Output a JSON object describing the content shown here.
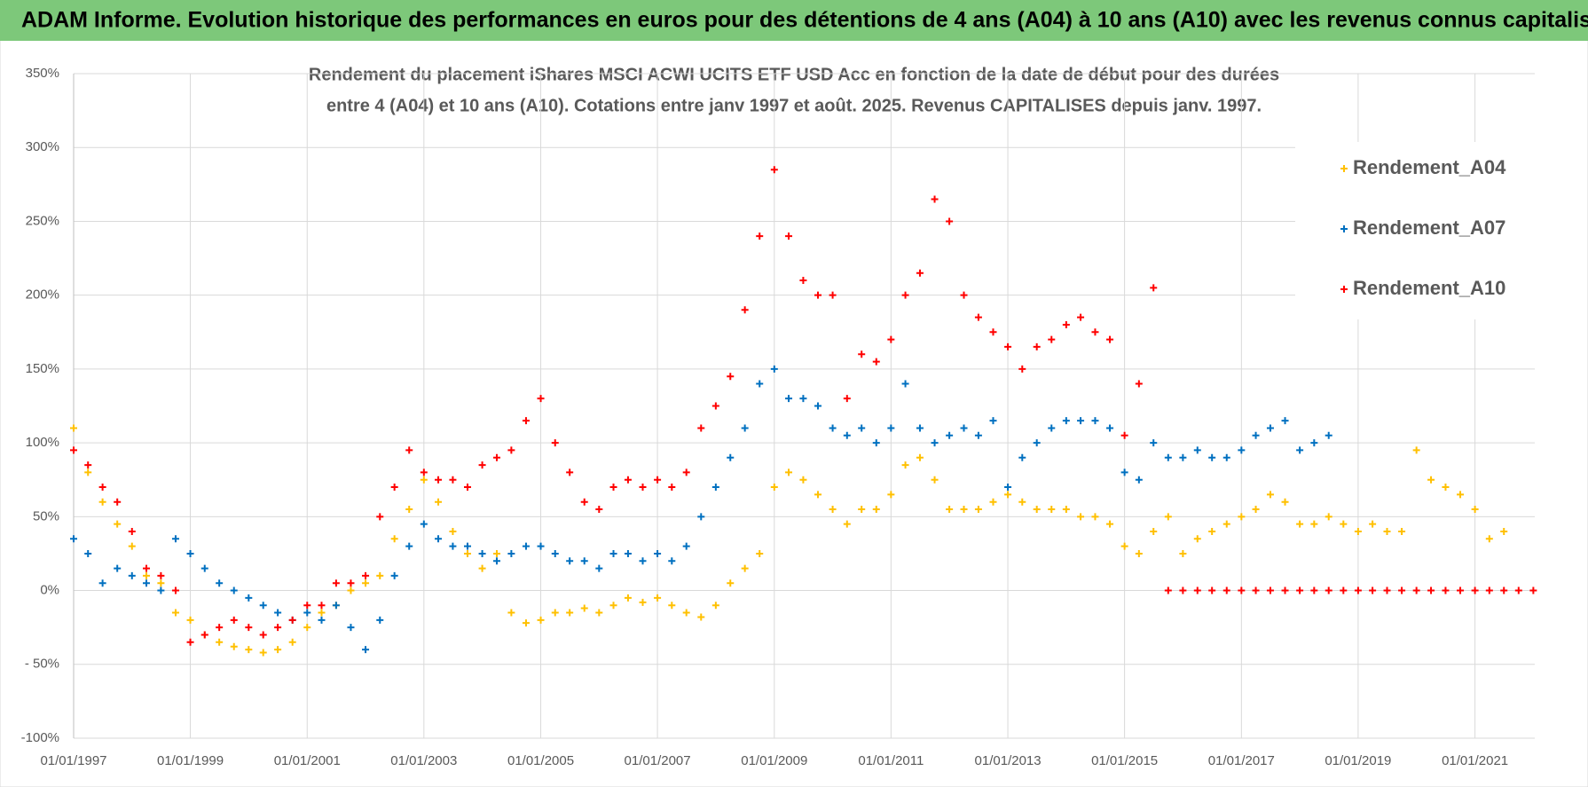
{
  "chart_data": {
    "type": "scatter",
    "title": "ADAM Informe. Evolution historique des performances en euros pour des détentions de 4 ans (A04) à 10 ans (A10) avec les revenus connus capitalisés",
    "subtitle": [
      "Rendement du placement iShares MSCI ACWI UCITS ETF USD Acc en fonction de la date de début pour des durées",
      "entre 4 (A04) et 10 ans (A10).  Cotations entre janv 1997 et août. 2025. Revenus CAPITALISES depuis janv. 1997."
    ],
    "xlim": [
      "1997-01-01",
      "2022-01-10"
    ],
    "xticks": [
      {
        "value": "1997-01-01",
        "label": "01/01/1997"
      },
      {
        "value": "1999-01-01",
        "label": "01/01/1999"
      },
      {
        "value": "2001-01-01",
        "label": "01/01/2001"
      },
      {
        "value": "2003-01-01",
        "label": "01/01/2003"
      },
      {
        "value": "2005-01-01",
        "label": "01/01/2005"
      },
      {
        "value": "2007-01-01",
        "label": "01/01/2007"
      },
      {
        "value": "2009-01-01",
        "label": "01/01/2009"
      },
      {
        "value": "2011-01-01",
        "label": "01/01/2011"
      },
      {
        "value": "2013-01-01",
        "label": "01/01/2013"
      },
      {
        "value": "2015-01-01",
        "label": "01/01/2015"
      },
      {
        "value": "2017-01-01",
        "label": "01/01/2017"
      },
      {
        "value": "2019-01-01",
        "label": "01/01/2019"
      },
      {
        "value": "2021-01-01",
        "label": "01/01/2021"
      }
    ],
    "ylim": [
      -100,
      350
    ],
    "yticks": [
      {
        "value": -100,
        "label": "-100%"
      },
      {
        "value": -50,
        "label": "- 50%"
      },
      {
        "value": 0,
        "label": "0%"
      },
      {
        "value": 50,
        "label": "50%"
      },
      {
        "value": 100,
        "label": "100%"
      },
      {
        "value": 150,
        "label": "150%"
      },
      {
        "value": 200,
        "label": "200%"
      },
      {
        "value": 250,
        "label": "250%"
      },
      {
        "value": 300,
        "label": "300%"
      },
      {
        "value": 350,
        "label": "350%"
      }
    ],
    "grid": true,
    "legend": "right",
    "series": [
      {
        "name": "Rendement_A04",
        "color": "#ffc000",
        "x": [
          "1997-01-01",
          "1997-04-01",
          "1997-07-01",
          "1997-10-01",
          "1998-01-01",
          "1998-04-01",
          "1998-07-01",
          "1998-10-01",
          "1999-01-01",
          "1999-04-01",
          "1999-07-01",
          "1999-10-01",
          "2000-01-01",
          "2000-04-01",
          "2000-07-01",
          "2000-10-01",
          "2001-01-01",
          "2001-04-01",
          "2001-07-01",
          "2001-10-01",
          "2002-01-01",
          "2002-04-01",
          "2002-07-01",
          "2002-10-01",
          "2003-01-01",
          "2003-04-01",
          "2003-07-01",
          "2003-10-01",
          "2004-01-01",
          "2004-04-01",
          "2004-07-01",
          "2004-10-01",
          "2005-01-01",
          "2005-04-01",
          "2005-07-01",
          "2005-10-01",
          "2006-01-01",
          "2006-04-01",
          "2006-07-01",
          "2006-10-01",
          "2007-01-01",
          "2007-04-01",
          "2007-07-01",
          "2007-10-01",
          "2008-01-01",
          "2008-04-01",
          "2008-07-01",
          "2008-10-01",
          "2009-01-01",
          "2009-04-01",
          "2009-07-01",
          "2009-10-01",
          "2010-01-01",
          "2010-04-01",
          "2010-07-01",
          "2010-10-01",
          "2011-01-01",
          "2011-04-01",
          "2011-07-01",
          "2011-10-01",
          "2012-01-01",
          "2012-04-01",
          "2012-07-01",
          "2012-10-01",
          "2013-01-01",
          "2013-04-01",
          "2013-07-01",
          "2013-10-01",
          "2014-01-01",
          "2014-04-01",
          "2014-07-01",
          "2014-10-01",
          "2015-01-01",
          "2015-04-01",
          "2015-07-01",
          "2015-10-01",
          "2016-01-01",
          "2016-04-01",
          "2016-07-01",
          "2016-10-01",
          "2017-01-01",
          "2017-04-01",
          "2017-07-01",
          "2017-10-01",
          "2018-01-01",
          "2018-04-01",
          "2018-07-01",
          "2018-10-01",
          "2019-01-01",
          "2019-04-01",
          "2019-07-01",
          "2019-10-01",
          "2020-01-01",
          "2020-04-01",
          "2020-07-01",
          "2020-10-01",
          "2021-01-01",
          "2021-04-01",
          "2021-07-01"
        ],
        "values": [
          110,
          80,
          60,
          45,
          30,
          10,
          5,
          -15,
          -20,
          -30,
          -35,
          -38,
          -40,
          -42,
          -40,
          -35,
          -25,
          -15,
          -10,
          0,
          5,
          10,
          35,
          55,
          75,
          60,
          40,
          25,
          15,
          25,
          -15,
          -22,
          -20,
          -15,
          -15,
          -12,
          -15,
          -10,
          -5,
          -8,
          -5,
          -10,
          -15,
          -18,
          -10,
          5,
          15,
          25,
          70,
          80,
          75,
          65,
          55,
          45,
          55,
          55,
          65,
          85,
          90,
          75,
          55,
          55,
          55,
          60,
          65,
          60,
          55,
          55,
          55,
          50,
          50,
          45,
          30,
          25,
          40,
          50,
          25,
          35,
          40,
          45,
          50,
          55,
          65,
          60,
          45,
          45,
          50,
          45,
          40,
          45,
          40,
          40,
          95,
          75,
          70,
          65,
          55,
          35,
          40
        ]
      },
      {
        "name": "Rendement_A07",
        "color": "#0070c0",
        "x": [
          "1997-01-01",
          "1997-04-01",
          "1997-07-01",
          "1997-10-01",
          "1998-01-01",
          "1998-04-01",
          "1998-07-01",
          "1998-10-01",
          "1999-01-01",
          "1999-04-01",
          "1999-07-01",
          "1999-10-01",
          "2000-01-01",
          "2000-04-01",
          "2000-07-01",
          "2000-10-01",
          "2001-01-01",
          "2001-04-01",
          "2001-07-01",
          "2001-10-01",
          "2002-01-01",
          "2002-04-01",
          "2002-07-01",
          "2002-10-01",
          "2003-01-01",
          "2003-04-01",
          "2003-07-01",
          "2003-10-01",
          "2004-01-01",
          "2004-04-01",
          "2004-07-01",
          "2004-10-01",
          "2005-01-01",
          "2005-04-01",
          "2005-07-01",
          "2005-10-01",
          "2006-01-01",
          "2006-04-01",
          "2006-07-01",
          "2006-10-01",
          "2007-01-01",
          "2007-04-01",
          "2007-07-01",
          "2007-10-01",
          "2008-01-01",
          "2008-04-01",
          "2008-07-01",
          "2008-10-01",
          "2009-01-01",
          "2009-04-01",
          "2009-07-01",
          "2009-10-01",
          "2010-01-01",
          "2010-04-01",
          "2010-07-01",
          "2010-10-01",
          "2011-01-01",
          "2011-04-01",
          "2011-07-01",
          "2011-10-01",
          "2012-01-01",
          "2012-04-01",
          "2012-07-01",
          "2012-10-01",
          "2013-01-01",
          "2013-04-01",
          "2013-07-01",
          "2013-10-01",
          "2014-01-01",
          "2014-04-01",
          "2014-07-01",
          "2014-10-01",
          "2015-01-01",
          "2015-04-01",
          "2015-07-01",
          "2015-10-01",
          "2016-01-01",
          "2016-04-01",
          "2016-07-01",
          "2016-10-01",
          "2017-01-01",
          "2017-04-01",
          "2017-07-01",
          "2017-10-01",
          "2018-01-01",
          "2018-04-01",
          "2018-07-01"
        ],
        "values": [
          35,
          25,
          5,
          15,
          10,
          5,
          0,
          35,
          25,
          15,
          5,
          0,
          -5,
          -10,
          -15,
          -20,
          -15,
          -20,
          -10,
          -25,
          -40,
          -20,
          10,
          30,
          45,
          35,
          30,
          30,
          25,
          20,
          25,
          30,
          30,
          25,
          20,
          20,
          15,
          25,
          25,
          20,
          25,
          20,
          30,
          50,
          70,
          90,
          110,
          140,
          150,
          130,
          130,
          125,
          110,
          105,
          110,
          100,
          110,
          140,
          110,
          100,
          105,
          110,
          105,
          115,
          70,
          90,
          100,
          110,
          115,
          115,
          115,
          110,
          80,
          75,
          100,
          90,
          90,
          95,
          90,
          90,
          95,
          105,
          110,
          115,
          95,
          100,
          105
        ]
      },
      {
        "name": "Rendement_A10",
        "color": "#ff0000",
        "x": [
          "1997-01-01",
          "1997-04-01",
          "1997-07-01",
          "1997-10-01",
          "1998-01-01",
          "1998-04-01",
          "1998-07-01",
          "1998-10-01",
          "1999-01-01",
          "1999-04-01",
          "1999-07-01",
          "1999-10-01",
          "2000-01-01",
          "2000-04-01",
          "2000-07-01",
          "2000-10-01",
          "2001-01-01",
          "2001-04-01",
          "2001-07-01",
          "2001-10-01",
          "2002-01-01",
          "2002-04-01",
          "2002-07-01",
          "2002-10-01",
          "2003-01-01",
          "2003-04-01",
          "2003-07-01",
          "2003-10-01",
          "2004-01-01",
          "2004-04-01",
          "2004-07-01",
          "2004-10-01",
          "2005-01-01",
          "2005-04-01",
          "2005-07-01",
          "2005-10-01",
          "2006-01-01",
          "2006-04-01",
          "2006-07-01",
          "2006-10-01",
          "2007-01-01",
          "2007-04-01",
          "2007-07-01",
          "2007-10-01",
          "2008-01-01",
          "2008-04-01",
          "2008-07-01",
          "2008-10-01",
          "2009-01-01",
          "2009-04-01",
          "2009-07-01",
          "2009-10-01",
          "2010-01-01",
          "2010-04-01",
          "2010-07-01",
          "2010-10-01",
          "2011-01-01",
          "2011-04-01",
          "2011-07-01",
          "2011-10-01",
          "2012-01-01",
          "2012-04-01",
          "2012-07-01",
          "2012-10-01",
          "2013-01-01",
          "2013-04-01",
          "2013-07-01",
          "2013-10-01",
          "2014-01-01",
          "2014-04-01",
          "2014-07-01",
          "2014-10-01",
          "2015-01-01",
          "2015-04-01",
          "2015-07-01",
          "2015-10-01",
          "2016-01-01",
          "2016-04-01",
          "2016-07-01",
          "2016-10-01",
          "2017-01-01",
          "2017-04-01",
          "2017-07-01",
          "2017-10-01",
          "2018-01-01",
          "2018-04-01",
          "2018-07-01",
          "2018-10-01",
          "2019-01-01",
          "2019-04-01",
          "2019-07-01",
          "2019-10-01",
          "2020-01-01",
          "2020-04-01",
          "2020-07-01",
          "2020-10-01",
          "2021-01-01",
          "2021-04-01",
          "2021-07-01",
          "2021-10-01",
          "2022-01-01"
        ],
        "values": [
          95,
          85,
          70,
          60,
          40,
          15,
          10,
          0,
          -35,
          -30,
          -25,
          -20,
          -25,
          -30,
          -25,
          -20,
          -10,
          -10,
          5,
          5,
          10,
          50,
          70,
          95,
          80,
          75,
          75,
          70,
          85,
          90,
          95,
          115,
          130,
          100,
          80,
          60,
          55,
          70,
          75,
          70,
          75,
          70,
          80,
          110,
          125,
          145,
          190,
          240,
          285,
          240,
          210,
          200,
          200,
          130,
          160,
          155,
          170,
          200,
          215,
          265,
          250,
          200,
          185,
          175,
          165,
          150,
          165,
          170,
          180,
          185,
          175,
          170,
          105,
          140,
          205,
          0,
          0,
          0,
          0,
          0,
          0,
          0,
          0,
          0,
          0,
          0,
          0,
          0,
          0,
          0,
          0,
          0,
          0,
          0,
          0,
          0,
          0,
          0,
          0,
          0,
          0
        ]
      }
    ]
  }
}
